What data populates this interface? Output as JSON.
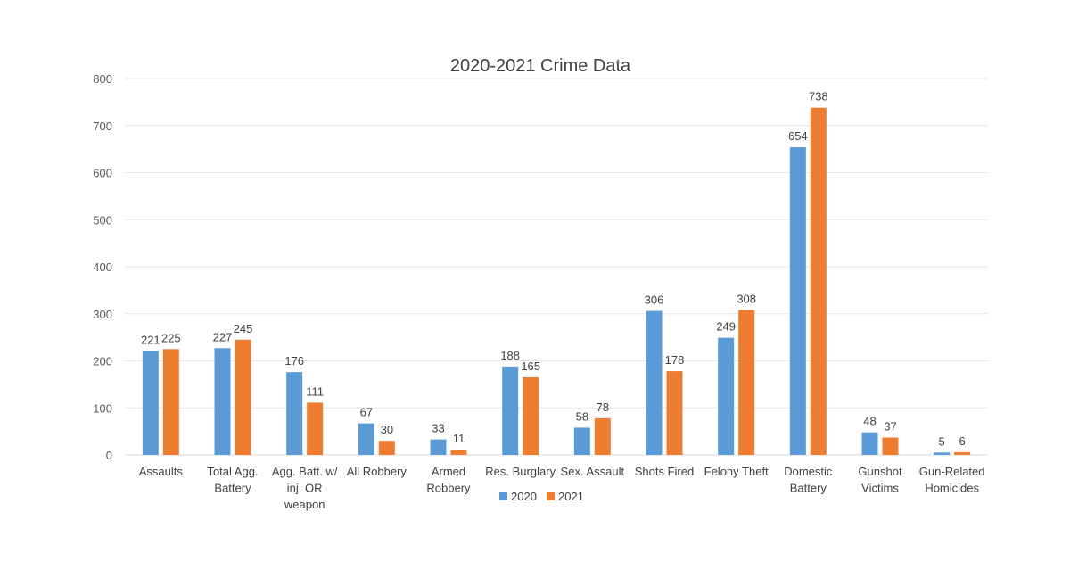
{
  "chart_data": {
    "type": "bar",
    "title": "2020-2021 Crime Data",
    "xlabel": "",
    "ylabel": "",
    "ylim": [
      0,
      800
    ],
    "yticks": [
      0,
      100,
      200,
      300,
      400,
      500,
      600,
      700,
      800
    ],
    "grid": true,
    "legend_position": "bottom",
    "categories": [
      "Assaults",
      "Total Agg. Battery",
      "Agg. Batt. w/ inj. OR weapon",
      "All Robbery",
      "Armed Robbery",
      "Res. Burglary",
      "Sex. Assault",
      "Shots Fired",
      "Felony Theft",
      "Domestic Battery",
      "Gunshot Victims",
      "Gun-Related Homicides"
    ],
    "category_lines": [
      [
        "Assaults"
      ],
      [
        "Total Agg.",
        "Battery"
      ],
      [
        "Agg. Batt. w/",
        "inj. OR",
        "weapon"
      ],
      [
        "All Robbery"
      ],
      [
        "Armed",
        "Robbery"
      ],
      [
        "Res. Burglary"
      ],
      [
        "Sex. Assault"
      ],
      [
        "Shots Fired"
      ],
      [
        "Felony Theft"
      ],
      [
        "Domestic",
        "Battery"
      ],
      [
        "Gunshot",
        "Victims"
      ],
      [
        "Gun-Related",
        "Homicides"
      ]
    ],
    "series": [
      {
        "name": "2020",
        "color": "#5B9BD5",
        "values": [
          221,
          227,
          176,
          67,
          33,
          188,
          58,
          306,
          249,
          654,
          48,
          5
        ]
      },
      {
        "name": "2021",
        "color": "#ED7D31",
        "values": [
          225,
          245,
          111,
          30,
          11,
          165,
          78,
          178,
          308,
          738,
          37,
          6
        ]
      }
    ]
  }
}
